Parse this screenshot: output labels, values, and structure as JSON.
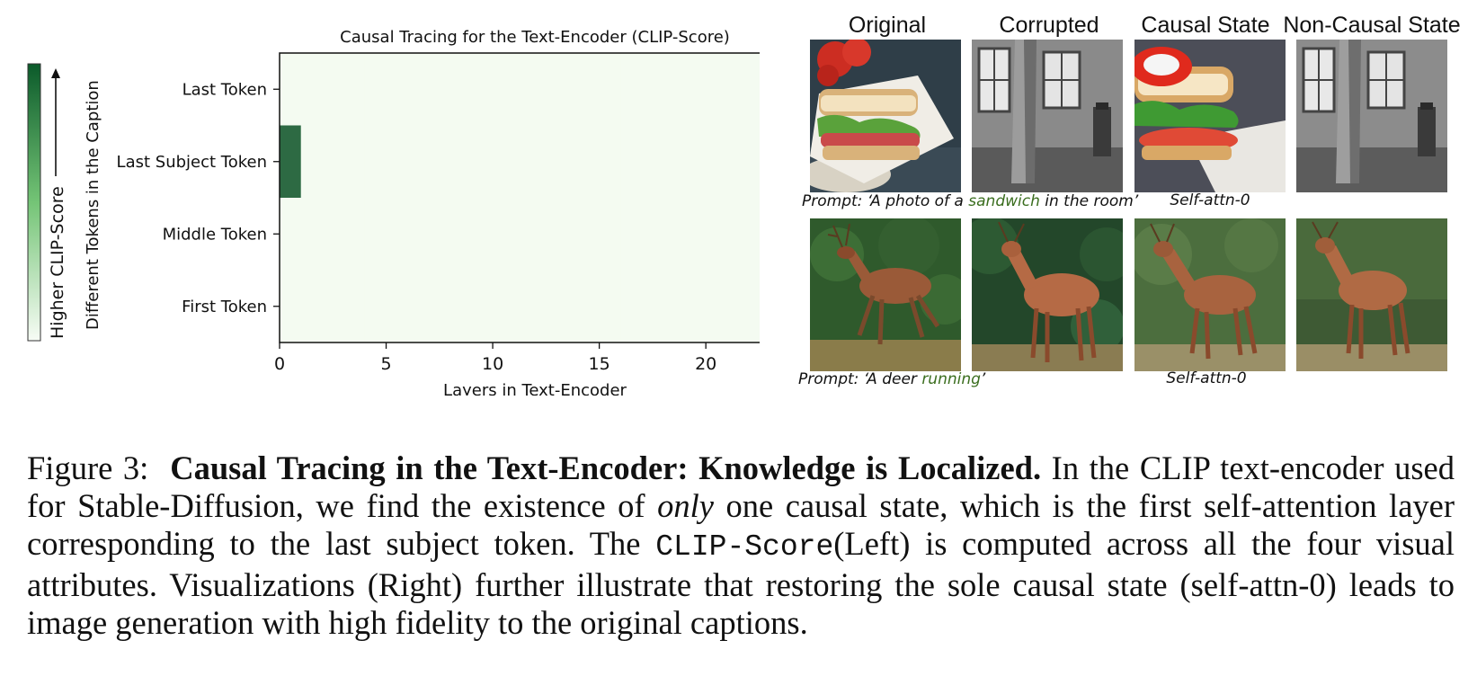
{
  "chart_data": {
    "type": "heatmap",
    "title": "Causal Tracing for the Text-Encoder (CLIP-Score)",
    "xlabel": "Layers in Text-Encoder",
    "ylabel": "Different Tokens in the Caption",
    "colorbar_label": "Higher CLIP-Score",
    "x_ticks": [
      0,
      5,
      10,
      15,
      20
    ],
    "xlim": [
      0,
      24
    ],
    "rows": [
      "Last Token",
      "Last Subject Token",
      "Middle Token",
      "First Token"
    ],
    "n_layers": 24,
    "values": [
      [
        0,
        0,
        0,
        0,
        0,
        0,
        0,
        0,
        0,
        0,
        0,
        0,
        0,
        0,
        0,
        0,
        0,
        0,
        0,
        0,
        0,
        0,
        0,
        0
      ],
      [
        1,
        0,
        0,
        0,
        0,
        0,
        0,
        0,
        0,
        0,
        0,
        0,
        0,
        0,
        0,
        0,
        0,
        0,
        0,
        0,
        0,
        0,
        0,
        0
      ],
      [
        0,
        0,
        0,
        0,
        0,
        0,
        0,
        0,
        0,
        0,
        0,
        0,
        0,
        0,
        0,
        0,
        0,
        0,
        0,
        0,
        0,
        0,
        0,
        0
      ],
      [
        0,
        0,
        0,
        0,
        0,
        0,
        0,
        0,
        0,
        0,
        0,
        0,
        0,
        0,
        0,
        0,
        0,
        0,
        0,
        0,
        0,
        0,
        0,
        0
      ]
    ],
    "colors": {
      "low": "#f4fbf1",
      "high": "#2d6a43",
      "bar_top": "#0b5a2a"
    }
  },
  "visualization": {
    "columns": [
      "Original",
      "Corrupted",
      "Causal State",
      "Non-Causal State"
    ],
    "row1": {
      "prompt_prefix": "Prompt: ‘A photo of a ",
      "prompt_highlight": "sandwich",
      "prompt_suffix": " in the room’",
      "attn_label": "Self-attn-0"
    },
    "row2": {
      "prompt_prefix": "Prompt: ‘A deer ",
      "prompt_highlight": "running",
      "prompt_suffix": "’",
      "attn_label": "Self-attn-0"
    }
  },
  "caption": {
    "fig_label": "Figure 3:",
    "title": "Causal Tracing in the Text-Encoder: Knowledge is Localized.",
    "text_1": " In the CLIP text-encoder used for Stable-Diffusion, we find the existence of ",
    "emph": "only",
    "text_2": " one causal state, which is the first self-attention layer corresponding to the last subject token. The ",
    "code": "CLIP-Score",
    "text_3": "(Left) is computed across all the four visual attributes. Visualizations (Right) further illustrate that restoring the sole causal state (self-attn-0) leads to image generation with high fidelity to the original captions."
  }
}
